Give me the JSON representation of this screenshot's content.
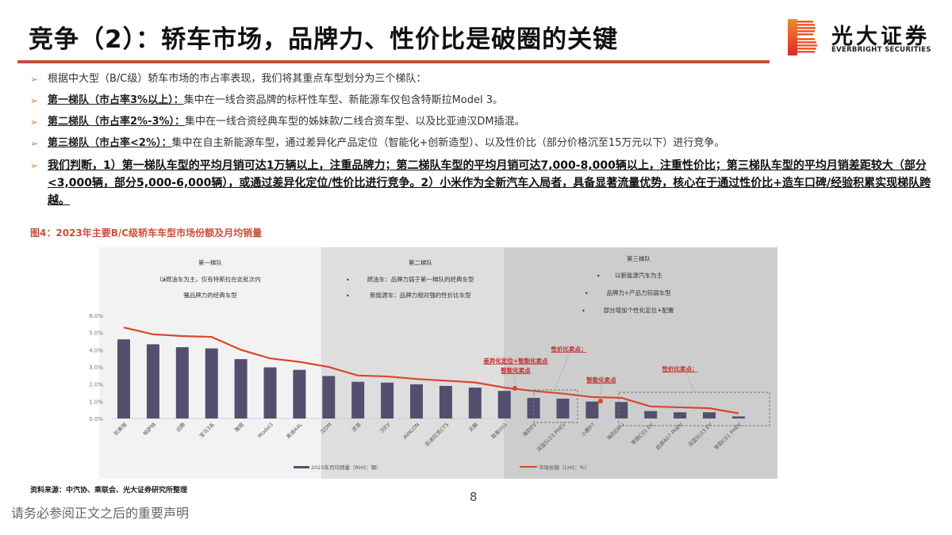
{
  "header": {
    "title": "竞争（2）：轿车市场，品牌力、性价比是破圈的关键",
    "logo_cn": "光大证券",
    "logo_en": "EVERBRIGHT SECURITIES"
  },
  "bullets": [
    {
      "key": "",
      "text": "根据中大型（B/C级）轿车市场的市占率表现，我们将其重点车型划分为三个梯队："
    },
    {
      "key": "第一梯队（市占率3%以上）：",
      "text": "集中在一线合资品牌的标杆性车型、新能源车仅包含特斯拉Model 3。"
    },
    {
      "key": "第二梯队（市占率2%-3%）：",
      "text": "集中在一线合资经典车型的姊妹款/二线合资车型、以及比亚迪汉DM插混。"
    },
    {
      "key": "第三梯队（市占率<2%）：",
      "text": "集中在自主新能源车型，通过差异化产品定位（智能化+创新造型）、以及性价比（部分价格沉至15万元以下）进行竞争。"
    }
  ],
  "conclusion": "我们判断，1）第一梯队车型的平均月销可达1万辆以上，注重品牌力；第二梯队车型的平均月销可达7,000-8,000辆以上，注重性价比；第三梯队车型的平均月销差距较大（部分<3,000辆，部分5,000-6,000辆），或通过差异化定位/性价比进行竞争。2）小米作为全新汽车入局者，具备显著流量优势，核心在于通过性价比+造车口碑/经验积累实现梯队跨越。",
  "figure_title": "图4：2023年主要B/C级轿车车型市场份额及月均销量",
  "tiers": [
    {
      "title": "第一梯队",
      "points": [
        "以燃油车为主，仅有特斯拉在此批次内",
        "强品牌力的经典车型"
      ]
    },
    {
      "title": "第二梯队",
      "points": [
        "燃油车：品牌力弱于第一梯队的经典车型",
        "新能源车：品牌力相对强的性价比车型"
      ]
    },
    {
      "title": "第三梯队",
      "points": [
        "以新能源汽车为主",
        "品牌力+产品力较弱车型",
        "部分增加个性化定位+配置"
      ]
    }
  ],
  "annotations": [
    "差异化定位+智能化卖点",
    "性价比卖点；",
    "智能化卖点",
    "性价比卖点；"
  ],
  "chart_data": {
    "type": "bar+line",
    "title": "2023年主要B/C级轿车车型市场份额及月均销量",
    "categories": [
      "凯美瑞",
      "帕萨特",
      "迈腾",
      "宝马3系",
      "雅阁",
      "Model3",
      "奥迪A4L",
      "汉DM",
      "凌渡",
      "汉EV",
      "AVALON",
      "凯迪拉克CT5",
      "天籁",
      "极氪001",
      "海豹EV",
      "深蓝SL03 PHEV",
      "小鹏P7",
      "海豹DM-i",
      "零跑C01 EV",
      "启源A07 PHEV",
      "深蓝SL03 EV",
      "零跑C01 PHEV"
    ],
    "series": [
      {
        "name": "2023年月均销量（RHS：辆）",
        "type": "bar",
        "axis": "right",
        "color": "#544f6e",
        "values": [
          19200,
          18000,
          17300,
          17000,
          14400,
          12400,
          11800,
          10300,
          8900,
          8700,
          8300,
          7900,
          7500,
          6700,
          5000,
          4800,
          4100,
          4000,
          1800,
          1500,
          1500,
          500
        ]
      },
      {
        "name": "市场份额（LHS：%）",
        "type": "line",
        "axis": "left",
        "color": "#d9472b",
        "values": [
          5.3,
          4.9,
          4.8,
          4.75,
          4.0,
          3.5,
          3.3,
          3.0,
          2.5,
          2.45,
          2.3,
          2.2,
          2.1,
          1.8,
          1.6,
          1.45,
          1.25,
          1.2,
          0.7,
          0.65,
          0.6,
          0.3
        ]
      }
    ],
    "left_axis": {
      "ticks": [
        "0.0%",
        "1.0%",
        "2.0%",
        "3.0%",
        "4.0%",
        "5.0%",
        "6.0%"
      ],
      "ylim": [
        0,
        6
      ]
    },
    "right_axis": {
      "ticks": [
        "0",
        "5000",
        "10000",
        "15000",
        "20000",
        "25000"
      ],
      "ylim": [
        0,
        25000
      ]
    },
    "legend": [
      "2023年月均销量（RHS：辆）",
      "市场份额（LHS：%）"
    ],
    "legend_position": "bottom",
    "grid": false
  },
  "footer": {
    "source": "资料来源：中汽协、乘联会、光大证券研究所整理",
    "page_number": "8",
    "disclaimer": "请务必参阅正文之后的重要声明"
  }
}
